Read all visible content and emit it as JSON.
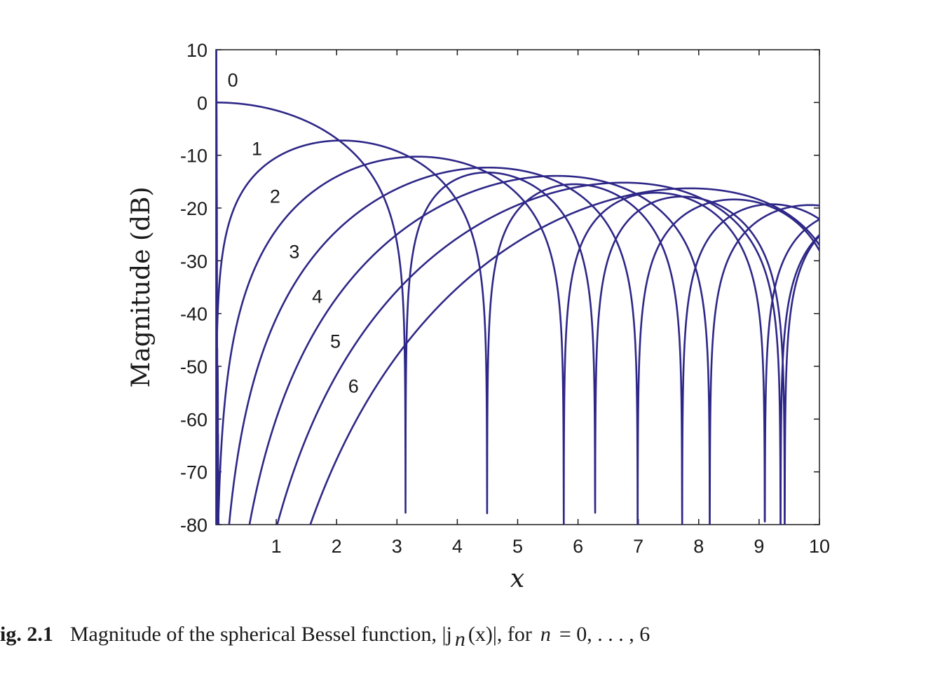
{
  "chart_data": {
    "type": "line",
    "xlabel": "x",
    "ylabel": "Magnitude (dB)",
    "xlim": [
      0,
      10
    ],
    "ylim": [
      -80,
      10
    ],
    "xticks": [
      "1",
      "2",
      "3",
      "4",
      "5",
      "6",
      "7",
      "8",
      "9",
      "10"
    ],
    "yticks": [
      "10",
      "0",
      "-10",
      "-20",
      "-30",
      "-40",
      "-50",
      "-60",
      "-70",
      "-80"
    ],
    "grid": false,
    "series_color": "#2e2787",
    "curve_labels": [
      "0",
      "1",
      "2",
      "3",
      "4",
      "5",
      "6"
    ],
    "function": "20*log10(|j_n(x)|)",
    "series": [
      {
        "n": 0,
        "x": [
          0,
          1,
          2,
          3,
          3.14,
          4,
          4.49,
          5,
          6,
          7,
          8,
          9,
          10
        ],
        "values": [
          0,
          -1.5,
          -6.9,
          -26.4,
          -80,
          -14.8,
          -16.5,
          -15.8,
          -17.7,
          -21.4,
          -18.1,
          -20.5,
          -25.0
        ]
      },
      {
        "n": 1,
        "x": [
          0.1,
          0.5,
          1,
          2,
          3,
          4,
          4.49,
          5,
          6,
          7,
          7.73,
          8,
          9,
          10
        ],
        "values": [
          -29.5,
          -15.9,
          -10.7,
          -7.4,
          -10.9,
          -15.6,
          -80,
          -17.2,
          -18.6,
          -17.3,
          -80,
          -21.8,
          -19.7,
          -20.7
        ]
      },
      {
        "n": 2,
        "x": [
          0.4,
          1,
          2,
          3,
          4,
          5,
          5.76,
          6,
          7,
          8,
          9,
          9.1,
          10
        ],
        "values": [
          -41.7,
          -26.0,
          -14.3,
          -10.7,
          -11.6,
          -15.7,
          -80,
          -21.3,
          -16.3,
          -16.8,
          -27.1,
          -80,
          -20.9
        ]
      },
      {
        "n": 3,
        "x": [
          0.6,
          1,
          2,
          3,
          4,
          5,
          6,
          6.99,
          7,
          8,
          9,
          10
        ],
        "values": [
          -60.0,
          -46.8,
          -27.7,
          -19.5,
          -14.3,
          -13.0,
          -14.6,
          -80,
          -48.0,
          -19.3,
          -17.4,
          -20.1
        ]
      },
      {
        "n": 4,
        "x": [
          1,
          2,
          3,
          4,
          5,
          6,
          7,
          8,
          8.18,
          9,
          10
        ],
        "values": [
          -67.2,
          -42.8,
          -29.7,
          -21.6,
          -16.6,
          -14.8,
          -14.8,
          -21.0,
          -80,
          -20.6,
          -18.5
        ]
      },
      {
        "n": 5,
        "x": [
          1.5,
          2,
          3,
          4,
          5,
          6,
          7,
          8,
          9,
          9.36,
          10
        ],
        "values": [
          -77.6,
          -66.0,
          -44.1,
          -33.1,
          -24.1,
          -17.6,
          -15.2,
          -15.5,
          -20.0,
          -80,
          -22.0
        ]
      },
      {
        "n": 6,
        "x": [
          1.6,
          2,
          3,
          4,
          5,
          6,
          7,
          8,
          9,
          9.42,
          10
        ],
        "values": [
          -80,
          -72.6,
          -51.6,
          -40.7,
          -30.6,
          -23.0,
          -18.1,
          -16.1,
          -17.8,
          -80,
          -21.4
        ]
      }
    ]
  },
  "caption": {
    "label": "ig. 2.1",
    "text": "Magnitude of the spherical Bessel function, |j",
    "subscript": "n",
    "text_mid": "(x)|, for",
    "variable": "n",
    "text_end": "= 0, . . . , 6"
  }
}
